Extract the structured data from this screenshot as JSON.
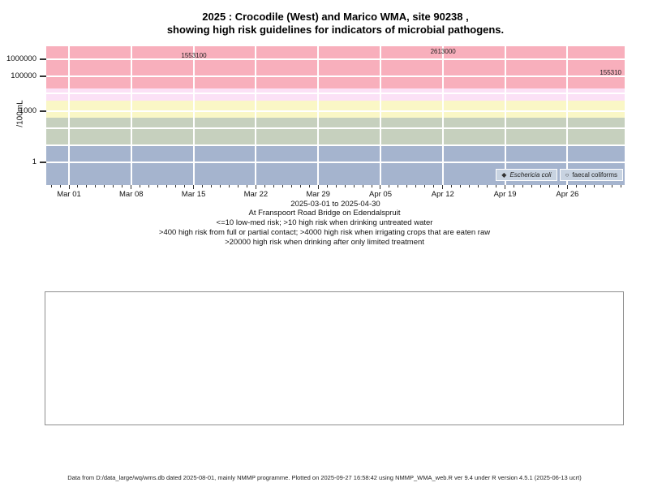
{
  "title": {
    "line1": "2025 : Crocodile (West) and Marico WMA, site 90238 ,",
    "line2": "showing high risk guidelines for indicators of microbial pathogens."
  },
  "chart_data": {
    "type": "line",
    "title": "2025 : Crocodile (West) and Marico WMA, site 90238, showing high risk guidelines for indicators of microbial pathogens.",
    "ylabel": "/100mL",
    "y_axis": {
      "scale": "log",
      "ticks": [
        {
          "value": 1000000,
          "label": "1000000"
        },
        {
          "value": 100000,
          "label": "100000"
        },
        {
          "value": 1000,
          "label": "1000"
        },
        {
          "value": 1,
          "label": "1"
        }
      ]
    },
    "x_axis": {
      "start": "2025-03-01",
      "end": "2025-04-30",
      "tick_labels": [
        "Mar 01",
        "Mar 08",
        "Mar 15",
        "Mar 22",
        "Mar 29",
        "Apr 05",
        "Apr 12",
        "Apr 19",
        "Apr 26"
      ],
      "range_label": "2025-03-01 to 2025-04-30"
    },
    "bands": [
      {
        "min": 20000,
        "max": null,
        "color": "#F8AFBC"
      },
      {
        "min": 4000,
        "max": 20000,
        "color": "#FBE1F6"
      },
      {
        "min": 400,
        "max": 4000,
        "color": "#FAF7C6"
      },
      {
        "min": 10,
        "max": 400,
        "color": "#C6D0BE"
      },
      {
        "min": null,
        "max": 10,
        "color": "#A5B4CE"
      }
    ],
    "series": [
      {
        "name": "Eschericia coli",
        "marker": "filled-diamond",
        "points": [
          {
            "date": "2025-03-17",
            "value": 1553100,
            "label": "1553100",
            "label_side": "left"
          },
          {
            "date": "2025-04-14",
            "value": 2613000,
            "label": "2613000",
            "label_side": "left"
          },
          {
            "date": "2025-04-29",
            "value": 155310,
            "label": "155310",
            "label_side": "right"
          }
        ]
      },
      {
        "name": "faecal coliforms",
        "marker": "open-circle",
        "points": []
      }
    ],
    "legend": {
      "position": "bottom-right",
      "marker1": "◆",
      "marker2": "○"
    },
    "colors": {
      "line": "#DADADA",
      "marker": "#333333",
      "grid": "#FFFFFF",
      "legend_bg": "#C8D3E1"
    }
  },
  "caption_lines": [
    "At Franspoort Road Bridge on Edendalspruit",
    "<=10 low-med risk; >10 high risk when drinking untreated water",
    ">400 high risk from full or partial contact; >4000 high risk when irrigating crops that are eaten raw",
    ">20000 high risk when drinking after only limited treatment"
  ],
  "footer": "Data from D:/data_large/wq/wms.db dated 2025-08-01, mainly NMMP programme. Plotted on 2025-09-27 16:58:42 using NMMP_WMA_web.R ver 9.4 under R version 4.5.1 (2025-06-13 ucrt)"
}
